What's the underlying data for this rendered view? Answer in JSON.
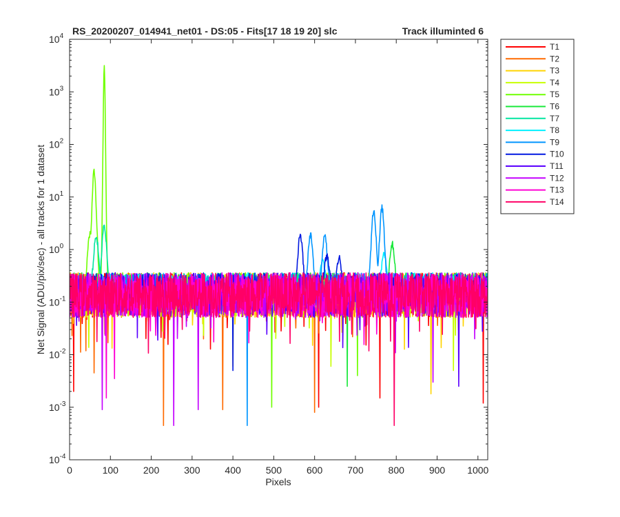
{
  "chart_data": {
    "type": "line",
    "title_left": "RS_20200207_014941_net01 - DS:05 - Fits[17   18  19  20]   slc",
    "title_right": "Track illuminted 6",
    "xlabel": "Pixels",
    "ylabel": "Net Signal (ADU/pix/sec) - all tracks for 1 dataset",
    "xlim": [
      0,
      1024
    ],
    "ylim": [
      0.0001,
      10000
    ],
    "yscale": "log",
    "x_ticks": [
      "0",
      "100",
      "200",
      "300",
      "400",
      "500",
      "600",
      "700",
      "800",
      "900",
      "1000"
    ],
    "y_ticks": [
      {
        "base": "10",
        "exp": "-4"
      },
      {
        "base": "10",
        "exp": "-3"
      },
      {
        "base": "10",
        "exp": "-2"
      },
      {
        "base": "10",
        "exp": "-1"
      },
      {
        "base": "10",
        "exp": "0"
      },
      {
        "base": "10",
        "exp": "1"
      },
      {
        "base": "10",
        "exp": "2"
      },
      {
        "base": "10",
        "exp": "3"
      },
      {
        "base": "10",
        "exp": "4"
      }
    ],
    "grid": false,
    "legend_position": "outside-right",
    "baseline_level": 0.15,
    "series": [
      {
        "name": "T1",
        "color": "#ff0000",
        "peaks": [],
        "dips": [
          [
            10,
            0.002
          ],
          [
            760,
            0.0015
          ],
          [
            1013,
            0.0012
          ],
          [
            610,
            0.001
          ]
        ]
      },
      {
        "name": "T2",
        "color": "#ff6a00",
        "peaks": [],
        "dips": [
          [
            230,
            0.00045
          ],
          [
            375,
            0.0009
          ],
          [
            600,
            0.0008
          ],
          [
            60,
            0.0045
          ]
        ]
      },
      {
        "name": "T3",
        "color": "#ffd400",
        "peaks": [],
        "dips": [
          [
            885,
            0.0018
          ],
          [
            400,
            0.006
          ]
        ]
      },
      {
        "name": "T4",
        "color": "#c8ff00",
        "peaks": [],
        "dips": [
          [
            640,
            0.006
          ],
          [
            940,
            0.005
          ]
        ]
      },
      {
        "name": "T5",
        "color": "#6fff00",
        "peaks": [
          [
            85,
            2900
          ],
          [
            60,
            30
          ],
          [
            50,
            2
          ]
        ],
        "dips": [
          [
            495,
            0.001
          ],
          [
            705,
            0.004
          ]
        ]
      },
      {
        "name": "T6",
        "color": "#18e83a",
        "peaks": [
          [
            790,
            1.3
          ]
        ],
        "dips": [
          [
            680,
            0.0025
          ]
        ]
      },
      {
        "name": "T7",
        "color": "#00e6a0",
        "peaks": [
          [
            85,
            2.8
          ],
          [
            65,
            1.9
          ]
        ],
        "dips": []
      },
      {
        "name": "T8",
        "color": "#00f0ff",
        "peaks": [
          [
            770,
            0.9
          ],
          [
            620,
            0.6
          ]
        ],
        "dips": []
      },
      {
        "name": "T9",
        "color": "#0095ff",
        "peaks": [
          [
            745,
            5.8
          ],
          [
            765,
            6.2
          ],
          [
            590,
            1.9
          ],
          [
            625,
            1.9
          ]
        ],
        "dips": [
          [
            435,
            0.00045
          ]
        ]
      },
      {
        "name": "T10",
        "color": "#0018e0",
        "peaks": [
          [
            565,
            1.9
          ],
          [
            630,
            0.75
          ],
          [
            660,
            0.7
          ]
        ],
        "dips": [
          [
            400,
            0.005
          ]
        ]
      },
      {
        "name": "T11",
        "color": "#5a00ff",
        "peaks": [],
        "dips": [
          [
            953,
            0.0025
          ]
        ]
      },
      {
        "name": "T12",
        "color": "#c400ff",
        "peaks": [],
        "dips": [
          [
            80,
            0.0009
          ],
          [
            255,
            0.00045
          ],
          [
            315,
            0.0009
          ],
          [
            890,
            0.003
          ]
        ]
      },
      {
        "name": "T13",
        "color": "#ff00d4",
        "peaks": [],
        "dips": [
          [
            90,
            0.0015
          ],
          [
            110,
            0.0035
          ]
        ]
      },
      {
        "name": "T14",
        "color": "#ff0066",
        "peaks": [],
        "dips": [
          [
            795,
            0.00045
          ]
        ]
      }
    ]
  }
}
